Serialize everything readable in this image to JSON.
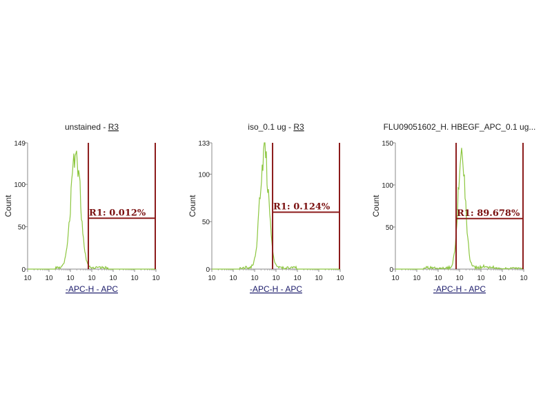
{
  "chart_data": [
    {
      "type": "histogram",
      "title": "unstained",
      "title_link": "R3",
      "xlabel": "-APC-H - APC",
      "ylabel": "Count",
      "x_tick_labels": [
        "10",
        "10",
        "10",
        "10",
        "10",
        "10",
        "10"
      ],
      "x_scale": "log",
      "y_ticks": [
        0,
        50,
        100,
        149
      ],
      "ylim": [
        0,
        149
      ],
      "gate": {
        "label": "R1: 0.012%",
        "x_start_decade": 2.84,
        "x_end_decade": 6,
        "y_level": 60
      },
      "peak_decade": 2.25,
      "peak_count": 149,
      "spread": 0.22,
      "color": "#8cc63f"
    },
    {
      "type": "histogram",
      "title": "iso_0.1 ug",
      "title_link": "R3",
      "xlabel": "-APC-H - APC",
      "ylabel": "Count",
      "x_tick_labels": [
        "10",
        "10",
        "10",
        "10",
        "10",
        "10",
        "10"
      ],
      "x_scale": "log",
      "y_ticks": [
        0,
        50,
        100,
        133
      ],
      "ylim": [
        0,
        133
      ],
      "gate": {
        "label": "R1: 0.124%",
        "x_start_decade": 2.84,
        "x_end_decade": 6,
        "y_level": 60
      },
      "peak_decade": 2.45,
      "peak_count": 133,
      "spread": 0.2,
      "color": "#8cc63f"
    },
    {
      "type": "histogram",
      "title": "FLU09051602_H. HBEGF_APC_0.1 ug...",
      "title_link": "",
      "xlabel": "-APC-H - APC",
      "ylabel": "Count",
      "x_tick_labels": [
        "10",
        "10",
        "10",
        "10",
        "10",
        "10",
        "10"
      ],
      "x_scale": "log",
      "y_ticks": [
        0,
        50,
        100,
        150
      ],
      "ylim": [
        0,
        150
      ],
      "gate": {
        "label": "R1: 89.678%",
        "x_start_decade": 2.84,
        "x_end_decade": 6,
        "y_level": 60
      },
      "peak_decade": 3.1,
      "peak_count": 145,
      "spread": 0.17,
      "color": "#8cc63f"
    }
  ],
  "colors": {
    "gate": "#8b1a1a",
    "histogram": "#8cc63f",
    "axis_label_link": "#1a1a6a"
  }
}
